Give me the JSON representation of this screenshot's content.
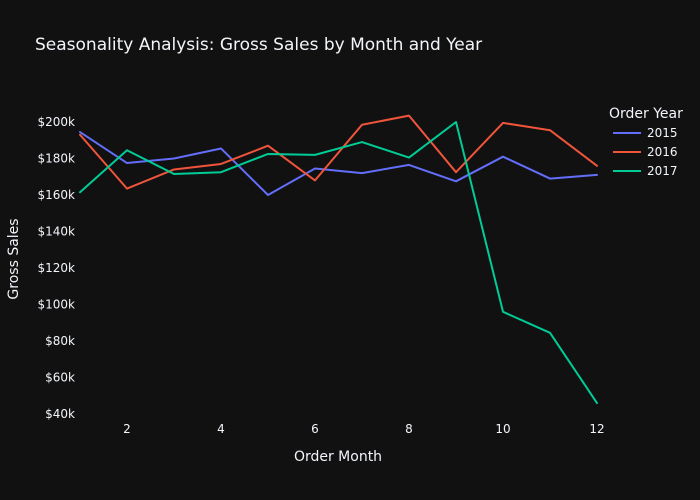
{
  "chart_data": {
    "type": "line",
    "title": "Seasonality Analysis: Gross Sales by Month and Year",
    "xlabel": "Order Month",
    "ylabel": "Gross Sales",
    "x": [
      1,
      2,
      3,
      4,
      5,
      6,
      7,
      8,
      9,
      10,
      11,
      12
    ],
    "xlim": [
      1,
      12
    ],
    "ylim": [
      40000,
      200000
    ],
    "x_ticks": [
      2,
      4,
      6,
      8,
      10,
      12
    ],
    "x_tick_labels": [
      "2",
      "4",
      "6",
      "8",
      "10",
      "12"
    ],
    "y_ticks": [
      40000,
      60000,
      80000,
      100000,
      120000,
      140000,
      160000,
      180000,
      200000
    ],
    "y_tick_labels": [
      "$40k",
      "$60k",
      "$80k",
      "$100k",
      "$120k",
      "$140k",
      "$160k",
      "$180k",
      "$200k"
    ],
    "grid": false,
    "legend": {
      "title": "Order Year",
      "placement": "top-right"
    },
    "series": [
      {
        "name": "2015",
        "color": "#636efa",
        "values": [
          194500,
          177500,
          180000,
          185500,
          160000,
          174500,
          172000,
          176500,
          167500,
          181000,
          169000,
          171000
        ]
      },
      {
        "name": "2016",
        "color": "#ef553b",
        "values": [
          193000,
          163500,
          174000,
          177000,
          187000,
          168000,
          198500,
          203500,
          172500,
          199500,
          195500,
          176000
        ]
      },
      {
        "name": "2017",
        "color": "#00cc96",
        "values": [
          161500,
          184500,
          171500,
          172500,
          182500,
          182000,
          189000,
          180500,
          200000,
          96000,
          84500,
          46000
        ]
      }
    ]
  }
}
